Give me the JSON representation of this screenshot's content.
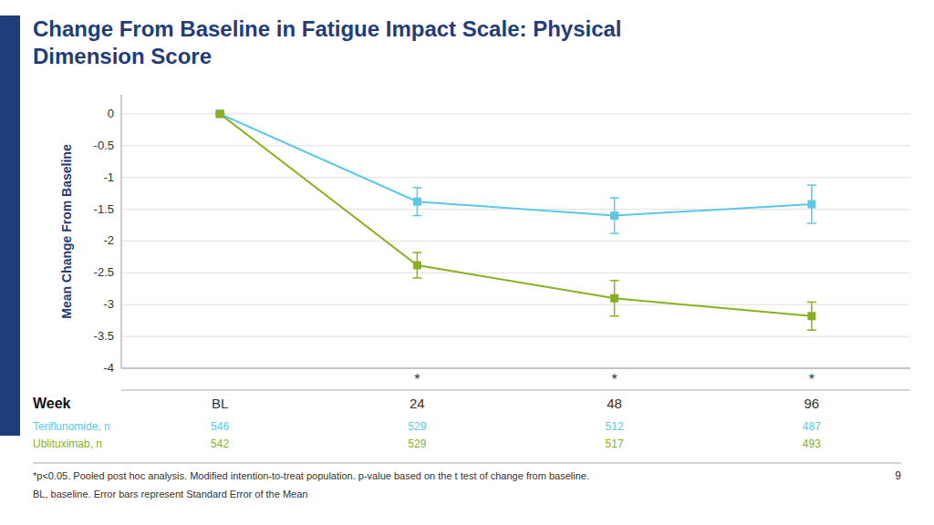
{
  "chart_data": {
    "type": "line",
    "title": [
      "Change From Baseline in Fatigue Impact Scale: Physical",
      "Dimension Score"
    ],
    "x_label": "Week",
    "y_label": "Mean Change From Baseline",
    "categories": [
      "BL",
      "24",
      "48",
      "96"
    ],
    "series": [
      {
        "name": "Teriflunomide, n",
        "color": "#5bc8e8",
        "marker": "square",
        "values": [
          0.0,
          -1.38,
          -1.6,
          -1.42
        ],
        "errors": [
          0.0,
          0.22,
          0.28,
          0.3
        ],
        "n": [
          546,
          529,
          512,
          487
        ]
      },
      {
        "name": "Ublituximab, n",
        "color": "#8ab020",
        "marker": "square",
        "values": [
          0.0,
          -2.38,
          -2.9,
          -3.18
        ],
        "errors": [
          0.0,
          0.2,
          0.28,
          0.22
        ],
        "n": [
          542,
          529,
          517,
          493
        ]
      }
    ],
    "ylim": [
      -4.0,
      0.3
    ],
    "yticks": [
      0,
      -0.5,
      -1,
      -1.5,
      -2,
      -2.5,
      -3,
      -3.5,
      -4
    ],
    "grid": true,
    "annotations": [
      {
        "x": "24",
        "text": "*"
      },
      {
        "x": "48",
        "text": "*"
      },
      {
        "x": "96",
        "text": "*"
      }
    ],
    "footnotes": [
      "*p<0.05. Pooled post hoc analysis. Modified intention-to-treat population. p-value based on the t test of change from baseline.",
      "BL, baseline. Error bars represent Standard Error of the Mean"
    ],
    "page_number": "9"
  }
}
